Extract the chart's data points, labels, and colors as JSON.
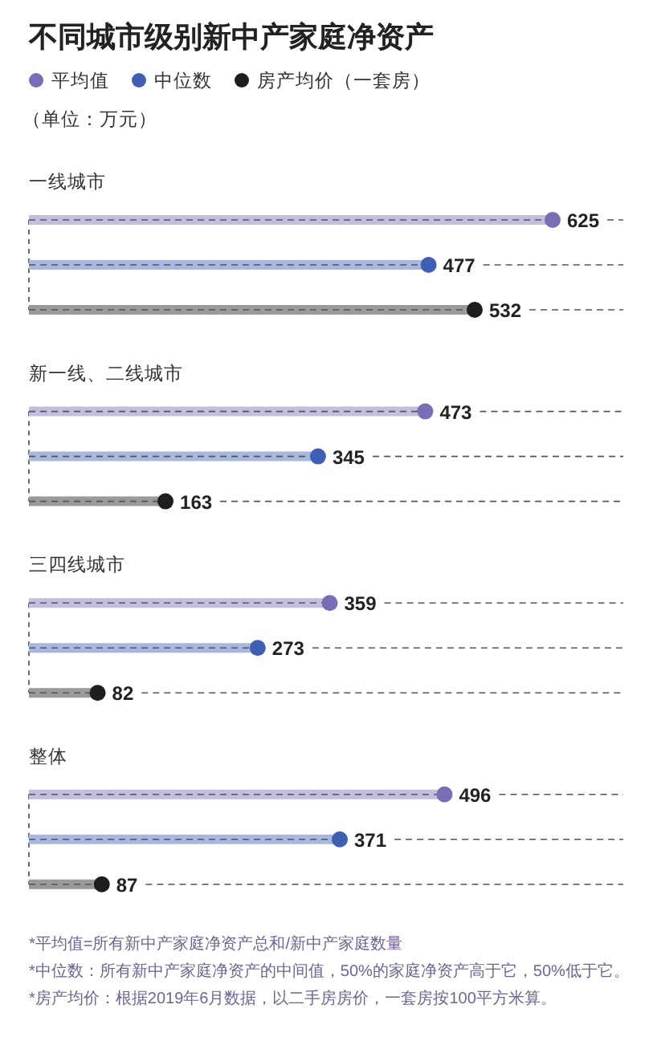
{
  "chart_data": {
    "type": "lollipop",
    "orientation": "horizontal",
    "title": "不同城市级别新中产家庭净资产",
    "subtitle": "（单位：万元）",
    "categories": [
      "一线城市",
      "新一线、二线城市",
      "三四线城市",
      "整体"
    ],
    "series": [
      {
        "name": "平均值",
        "color": "#7b6cb6",
        "values": [
          625,
          473,
          359,
          496
        ]
      },
      {
        "name": "中位数",
        "color": "#3e5fb4",
        "values": [
          477,
          345,
          273,
          371
        ]
      },
      {
        "name": "房产均价（一套房）",
        "color": "#1e1e1e",
        "values": [
          532,
          163,
          82,
          87
        ]
      }
    ],
    "data_labels": true,
    "legend": "top left",
    "grid": "y",
    "annotations": [
      "*平均值=所有新中产家庭净资产总和/新中产家庭数量",
      "*中位数：所有新中产家庭净资产的中间值，50%的家庭净资产高于它，50%低于它。",
      "*房产均价：根据2019年6月数据，以二手房房价，一套房按100平方米算。"
    ]
  }
}
